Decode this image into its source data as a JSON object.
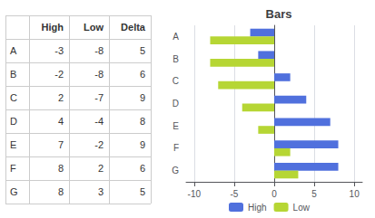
{
  "chart_data": [
    {
      "type": "table",
      "columns": [
        null,
        "High",
        "Low",
        "Delta"
      ],
      "rows": [
        [
          "A",
          -3,
          -8,
          5
        ],
        [
          "B",
          -2,
          -8,
          6
        ],
        [
          "C",
          2,
          -7,
          9
        ],
        [
          "D",
          4,
          -4,
          8
        ],
        [
          "E",
          7,
          -2,
          9
        ],
        [
          "F",
          8,
          2,
          6
        ],
        [
          "G",
          8,
          3,
          5
        ]
      ]
    },
    {
      "type": "bar",
      "title": "Bars",
      "orientation": "horizontal",
      "categories": [
        "A",
        "B",
        "C",
        "D",
        "E",
        "F",
        "G"
      ],
      "series": [
        {
          "name": "High",
          "values": [
            -3,
            -2,
            2,
            4,
            7,
            8,
            8
          ]
        },
        {
          "name": "Low",
          "values": [
            -8,
            -8,
            -7,
            -4,
            -2,
            2,
            3
          ]
        }
      ],
      "xlim": [
        -11,
        11
      ],
      "xticks": [
        -10,
        -5,
        0,
        5,
        10
      ],
      "grid": true,
      "legend": "bottom"
    }
  ]
}
